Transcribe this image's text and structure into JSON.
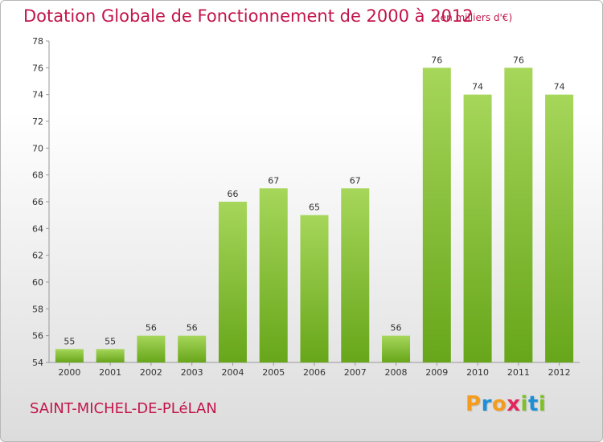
{
  "header": {
    "title": "Dotation Globale de Fonctionnement de 2000 à 2012",
    "subtitle": "(en milliers d'€)"
  },
  "footer": {
    "commune": "SAINT-MICHEL-DE-PLéLAN",
    "brand_letters": [
      "P",
      "r",
      "o",
      "x",
      "i",
      "t",
      "i"
    ],
    "brand_colors": [
      "#f39c1f",
      "#1e8fd6",
      "#f39c1f",
      "#e3265e",
      "#7fbf2a",
      "#1e8fd6",
      "#7fbf2a"
    ]
  },
  "chart_data": {
    "type": "bar",
    "title": "Dotation Globale de Fonctionnement de 2000 à 2012",
    "subtitle": "(en milliers d'€)",
    "xlabel": "",
    "ylabel": "",
    "categories": [
      "2000",
      "2001",
      "2002",
      "2003",
      "2004",
      "2005",
      "2006",
      "2007",
      "2008",
      "2009",
      "2010",
      "2011",
      "2012"
    ],
    "values": [
      55,
      55,
      56,
      56,
      66,
      67,
      65,
      67,
      56,
      76,
      74,
      76,
      74
    ],
    "ylim": [
      54,
      78
    ],
    "yticks": [
      54,
      56,
      58,
      60,
      62,
      64,
      66,
      68,
      70,
      72,
      74,
      76,
      78
    ],
    "grid": false,
    "legend": "none",
    "colors": {
      "bar_light": "#a6d65a",
      "bar_dark": "#67a61a",
      "axis": "#999999",
      "tick_text": "#333333",
      "title": "#c3144b"
    }
  }
}
